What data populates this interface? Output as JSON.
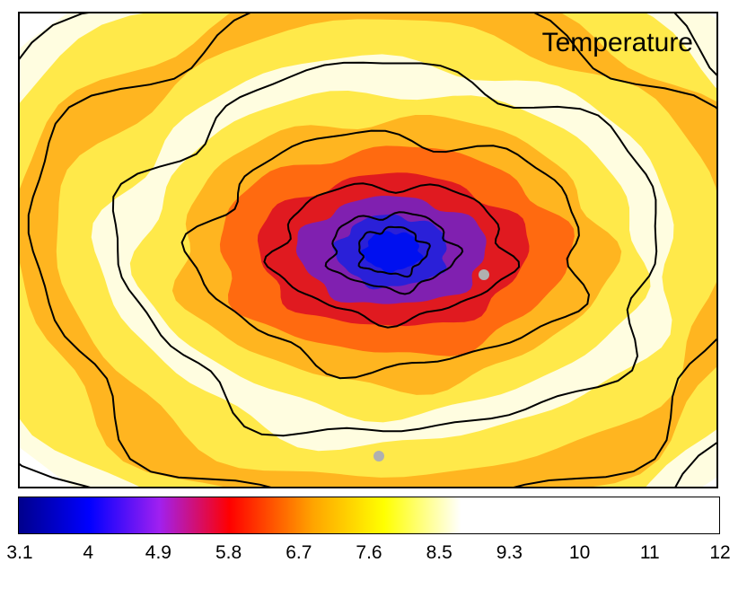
{
  "chart_data": {
    "type": "heatmap",
    "title": "Temperature",
    "colorbar": {
      "ticks": [
        "3.1",
        "4",
        "4.9",
        "5.8",
        "6.7",
        "7.6",
        "8.5",
        "9.3",
        "10",
        "11",
        "12"
      ],
      "vmin": 3.1,
      "vmax": 12,
      "colors": [
        "#00008c",
        "#0000ff",
        "#a020f0",
        "#ff0000",
        "#ffa500",
        "#ffff00",
        "#ffffff"
      ]
    },
    "field": {
      "description_bands": [
        {
          "level": 4.0,
          "color": "#1010e0"
        },
        {
          "level": 4.9,
          "color": "#6020c0"
        },
        {
          "level": 5.8,
          "color": "#e01a20"
        },
        {
          "level": 6.5,
          "color": "#ff6a10"
        },
        {
          "level": 7.2,
          "color": "#ffb520"
        },
        {
          "level": 7.9,
          "color": "#ffe94a"
        },
        {
          "level": 8.6,
          "color": "#fffde0"
        }
      ],
      "contours": "black isolines",
      "missing_color": "#b0b0b0"
    }
  }
}
